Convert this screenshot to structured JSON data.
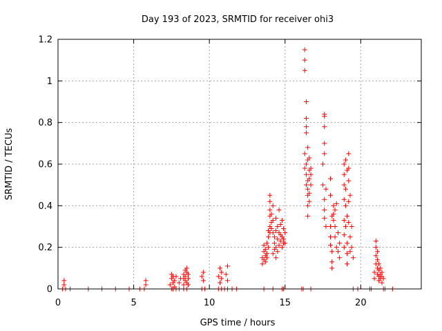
{
  "chart_data": {
    "type": "scatter",
    "title": "Day 193 of 2023, SRMTID for receiver ohi3",
    "xlabel": "GPS time / hours",
    "ylabel": "SRMTID / TECUs",
    "xlim": [
      0,
      24
    ],
    "ylim": [
      0,
      1.2
    ],
    "xticks": [
      0,
      5,
      10,
      15,
      20
    ],
    "xtick_labels": [
      "0",
      "5",
      "10",
      "15",
      "20"
    ],
    "yticks": [
      0,
      0.2,
      0.4,
      0.6,
      0.8,
      1.0,
      1.2
    ],
    "ytick_labels": [
      "0",
      "0.2",
      "0.4",
      "0.6",
      "0.8",
      "1",
      "1.2"
    ],
    "grid": true,
    "marker": "+",
    "series_color": "#ff0000",
    "series": [
      {
        "name": "SRMTID",
        "points": [
          [
            0.3,
            0.0
          ],
          [
            0.4,
            0.04
          ],
          [
            0.4,
            0.02
          ],
          [
            0.5,
            0.0
          ],
          [
            0.8,
            0.0
          ],
          [
            2.0,
            0.0
          ],
          [
            2.9,
            0.0
          ],
          [
            3.8,
            0.0
          ],
          [
            4.7,
            0.0
          ],
          [
            5.4,
            0.0
          ],
          [
            5.7,
            0.0
          ],
          [
            5.8,
            0.04
          ],
          [
            5.8,
            0.02
          ],
          [
            7.4,
            0.02
          ],
          [
            7.5,
            0.05
          ],
          [
            7.5,
            0.07
          ],
          [
            7.6,
            0.03
          ],
          [
            7.6,
            0.06
          ],
          [
            7.7,
            0.04
          ],
          [
            7.7,
            0.01
          ],
          [
            7.8,
            0.06
          ],
          [
            7.8,
            0.0
          ],
          [
            7.5,
            0.0
          ],
          [
            7.6,
            0.0
          ],
          [
            8.0,
            0.03
          ],
          [
            8.1,
            0.05
          ],
          [
            8.0,
            0.0
          ],
          [
            8.3,
            0.02
          ],
          [
            8.3,
            0.05
          ],
          [
            8.3,
            0.07
          ],
          [
            8.4,
            0.09
          ],
          [
            8.4,
            0.04
          ],
          [
            8.4,
            0.06
          ],
          [
            8.5,
            0.08
          ],
          [
            8.5,
            0.03
          ],
          [
            8.5,
            0.1
          ],
          [
            8.6,
            0.05
          ],
          [
            8.6,
            0.07
          ],
          [
            8.6,
            0.02
          ],
          [
            8.3,
            0.0
          ],
          [
            8.5,
            0.0
          ],
          [
            9.5,
            0.06
          ],
          [
            9.6,
            0.08
          ],
          [
            9.6,
            0.04
          ],
          [
            9.5,
            0.0
          ],
          [
            9.7,
            0.0
          ],
          [
            10.6,
            0.06
          ],
          [
            10.7,
            0.1
          ],
          [
            10.7,
            0.03
          ],
          [
            10.8,
            0.08
          ],
          [
            10.8,
            0.05
          ],
          [
            10.6,
            0.0
          ],
          [
            10.8,
            0.0
          ],
          [
            11.1,
            0.07
          ],
          [
            11.2,
            0.11
          ],
          [
            11.2,
            0.04
          ],
          [
            11.0,
            0.0
          ],
          [
            11.2,
            0.0
          ],
          [
            11.5,
            0.0
          ],
          [
            11.8,
            0.0
          ],
          [
            13.5,
            0.15
          ],
          [
            13.5,
            0.12
          ],
          [
            13.6,
            0.18
          ],
          [
            13.6,
            0.21
          ],
          [
            13.6,
            0.14
          ],
          [
            13.7,
            0.16
          ],
          [
            13.7,
            0.19
          ],
          [
            13.7,
            0.13
          ],
          [
            13.8,
            0.17
          ],
          [
            13.8,
            0.22
          ],
          [
            13.8,
            0.15
          ],
          [
            13.9,
            0.25
          ],
          [
            13.9,
            0.2
          ],
          [
            13.9,
            0.28
          ],
          [
            14.0,
            0.3
          ],
          [
            14.0,
            0.35
          ],
          [
            14.0,
            0.27
          ],
          [
            14.0,
            0.42
          ],
          [
            14.0,
            0.45
          ],
          [
            14.0,
            0.38
          ],
          [
            14.1,
            0.32
          ],
          [
            14.1,
            0.29
          ],
          [
            14.1,
            0.36
          ],
          [
            14.2,
            0.27
          ],
          [
            14.2,
            0.33
          ],
          [
            14.2,
            0.4
          ],
          [
            14.2,
            0.17
          ],
          [
            14.3,
            0.22
          ],
          [
            14.3,
            0.25
          ],
          [
            14.3,
            0.19
          ],
          [
            14.4,
            0.28
          ],
          [
            14.4,
            0.34
          ],
          [
            14.4,
            0.15
          ],
          [
            14.4,
            0.2
          ],
          [
            14.5,
            0.24
          ],
          [
            14.5,
            0.3
          ],
          [
            14.5,
            0.18
          ],
          [
            14.6,
            0.38
          ],
          [
            14.6,
            0.21
          ],
          [
            14.6,
            0.27
          ],
          [
            14.7,
            0.31
          ],
          [
            14.7,
            0.23
          ],
          [
            14.7,
            0.26
          ],
          [
            14.8,
            0.33
          ],
          [
            14.8,
            0.2
          ],
          [
            14.8,
            0.25
          ],
          [
            14.9,
            0.29
          ],
          [
            14.9,
            0.22
          ],
          [
            14.9,
            0.24
          ],
          [
            15.0,
            0.27
          ],
          [
            15.0,
            0.22
          ],
          [
            13.6,
            0.0
          ],
          [
            14.2,
            0.0
          ],
          [
            14.8,
            0.0
          ],
          [
            14.9,
            0.0
          ],
          [
            16.1,
            0.0
          ],
          [
            16.2,
            0.0
          ],
          [
            16.3,
            1.15
          ],
          [
            16.3,
            1.1
          ],
          [
            16.3,
            1.05
          ],
          [
            16.4,
            0.9
          ],
          [
            16.4,
            0.78
          ],
          [
            16.4,
            0.82
          ],
          [
            16.4,
            0.75
          ],
          [
            16.3,
            0.65
          ],
          [
            16.3,
            0.58
          ],
          [
            16.4,
            0.6
          ],
          [
            16.4,
            0.55
          ],
          [
            16.4,
            0.5
          ],
          [
            16.5,
            0.62
          ],
          [
            16.5,
            0.52
          ],
          [
            16.5,
            0.48
          ],
          [
            16.5,
            0.45
          ],
          [
            16.5,
            0.4
          ],
          [
            16.5,
            0.35
          ],
          [
            16.5,
            0.68
          ],
          [
            16.6,
            0.57
          ],
          [
            16.6,
            0.42
          ],
          [
            16.6,
            0.63
          ],
          [
            16.6,
            0.53
          ],
          [
            16.6,
            0.46
          ],
          [
            16.7,
            0.58
          ],
          [
            16.7,
            0.5
          ],
          [
            16.7,
            0.55
          ],
          [
            16.7,
            0.0
          ],
          [
            17.6,
            0.84
          ],
          [
            17.6,
            0.83
          ],
          [
            17.6,
            0.78
          ],
          [
            17.6,
            0.7
          ],
          [
            17.6,
            0.65
          ],
          [
            17.5,
            0.6
          ],
          [
            17.5,
            0.5
          ],
          [
            17.6,
            0.43
          ],
          [
            17.6,
            0.38
          ],
          [
            17.6,
            0.34
          ],
          [
            17.7,
            0.3
          ],
          [
            17.7,
            0.48
          ],
          [
            18.0,
            0.53
          ],
          [
            18.0,
            0.45
          ],
          [
            18.0,
            0.3
          ],
          [
            18.0,
            0.25
          ],
          [
            18.0,
            0.21
          ],
          [
            18.1,
            0.35
          ],
          [
            18.1,
            0.18
          ],
          [
            18.1,
            0.13
          ],
          [
            18.1,
            0.1
          ],
          [
            18.2,
            0.36
          ],
          [
            18.2,
            0.4
          ],
          [
            18.2,
            0.33
          ],
          [
            18.3,
            0.38
          ],
          [
            18.3,
            0.3
          ],
          [
            18.3,
            0.25
          ],
          [
            18.4,
            0.2
          ],
          [
            18.4,
            0.41
          ],
          [
            18.5,
            0.27
          ],
          [
            18.5,
            0.18
          ],
          [
            18.6,
            0.15
          ],
          [
            18.6,
            0.22
          ],
          [
            18.9,
            0.6
          ],
          [
            18.9,
            0.55
          ],
          [
            18.9,
            0.5
          ],
          [
            18.9,
            0.43
          ],
          [
            18.9,
            0.33
          ],
          [
            18.9,
            0.26
          ],
          [
            18.9,
            0.2
          ],
          [
            19.0,
            0.62
          ],
          [
            19.0,
            0.48
          ],
          [
            19.0,
            0.4
          ],
          [
            19.0,
            0.3
          ],
          [
            19.1,
            0.57
          ],
          [
            19.1,
            0.35
          ],
          [
            19.1,
            0.22
          ],
          [
            19.1,
            0.17
          ],
          [
            19.1,
            0.12
          ],
          [
            19.2,
            0.65
          ],
          [
            19.2,
            0.58
          ],
          [
            19.2,
            0.52
          ],
          [
            19.2,
            0.42
          ],
          [
            19.2,
            0.32
          ],
          [
            19.3,
            0.45
          ],
          [
            19.3,
            0.25
          ],
          [
            19.3,
            0.18
          ],
          [
            19.4,
            0.3
          ],
          [
            19.4,
            0.2
          ],
          [
            19.5,
            0.15
          ],
          [
            19.5,
            0.0
          ],
          [
            19.8,
            0.0
          ],
          [
            20.6,
            0.0
          ],
          [
            20.7,
            0.0
          ],
          [
            20.9,
            0.08
          ],
          [
            20.9,
            0.05
          ],
          [
            21.0,
            0.23
          ],
          [
            21.0,
            0.2
          ],
          [
            21.0,
            0.16
          ],
          [
            21.0,
            0.12
          ],
          [
            21.1,
            0.18
          ],
          [
            21.1,
            0.14
          ],
          [
            21.1,
            0.1
          ],
          [
            21.1,
            0.07
          ],
          [
            21.2,
            0.12
          ],
          [
            21.2,
            0.09
          ],
          [
            21.2,
            0.06
          ],
          [
            21.2,
            0.04
          ],
          [
            21.3,
            0.1
          ],
          [
            21.3,
            0.07
          ],
          [
            21.3,
            0.05
          ],
          [
            21.4,
            0.08
          ],
          [
            21.4,
            0.06
          ],
          [
            21.4,
            0.03
          ],
          [
            21.5,
            0.05
          ],
          [
            21.5,
            0.0
          ],
          [
            21.6,
            0.0
          ],
          [
            22.1,
            0.0
          ]
        ]
      }
    ]
  }
}
